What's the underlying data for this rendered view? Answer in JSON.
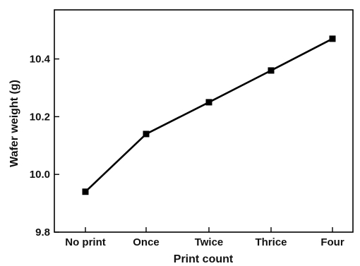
{
  "chart_data": {
    "type": "line",
    "title": "",
    "xlabel": "Print count",
    "ylabel": "Wafer weight (g)",
    "categories": [
      "No print",
      "Once",
      "Twice",
      "Thrice",
      "Four"
    ],
    "series": [
      {
        "values": [
          9.94,
          10.14,
          10.25,
          10.36,
          10.47
        ],
        "marker": "square",
        "color": "#000000"
      }
    ],
    "ylim": [
      9.8,
      10.57
    ],
    "yticks": [
      9.8,
      10.0,
      10.2,
      10.4
    ],
    "ytick_labels": [
      "9.8",
      "10.0",
      "10.2",
      "10.4"
    ],
    "grid": false,
    "legend": "none"
  }
}
